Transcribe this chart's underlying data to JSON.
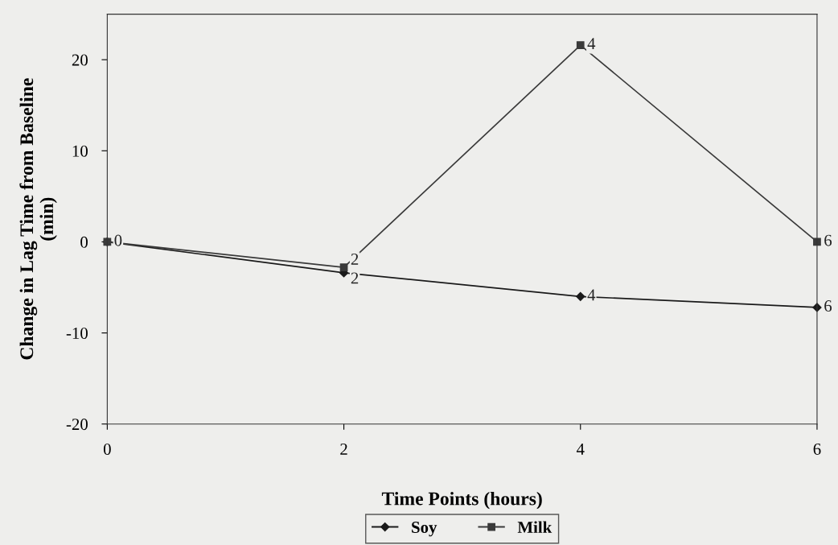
{
  "chart_data": {
    "type": "line",
    "xlabel": "Time Points (hours)",
    "ylabel": "Change in Lag Time from Baseline\n(min)",
    "x": [
      0,
      2,
      4,
      6
    ],
    "xlim": [
      0,
      6
    ],
    "xticks": [
      0,
      2,
      4,
      6
    ],
    "ylim": [
      -20,
      25
    ],
    "yticks": [
      -20,
      -10,
      0,
      10,
      20
    ],
    "series": [
      {
        "name": "Soy",
        "color": "#1a1a1a",
        "marker": "diamond",
        "values": [
          0,
          -3.4,
          -6.0,
          -7.2
        ]
      },
      {
        "name": "Milk",
        "color": "#3a3a3a",
        "marker": "square",
        "values": [
          0,
          -2.8,
          21.6,
          0
        ]
      }
    ],
    "annotations": [
      {
        "text": "0",
        "x": 0,
        "y": 0
      },
      {
        "text": "2",
        "x": 2,
        "y": -3.4
      },
      {
        "text": "4",
        "x": 4,
        "y": -6.0
      },
      {
        "text": "6",
        "x": 6,
        "y": -7.2
      },
      {
        "text": "2",
        "x": 2,
        "y": -2.8
      },
      {
        "text": "4",
        "x": 4,
        "y": 21.6
      },
      {
        "text": "6",
        "x": 6,
        "y": 0
      }
    ],
    "legend": "bottom",
    "grid": false,
    "line_style": "solid"
  }
}
